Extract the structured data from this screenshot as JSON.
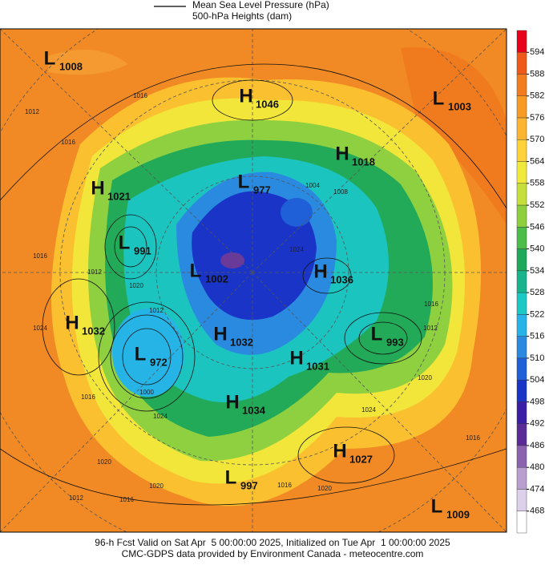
{
  "header": {
    "legend": [
      "Mean Sea Level Pressure (hPa)",
      "500-hPa Heights (dam)"
    ]
  },
  "centers": [
    {
      "type": "L",
      "value": 1008
    },
    {
      "type": "H",
      "value": 1046
    },
    {
      "type": "L",
      "value": 1003
    },
    {
      "type": "H",
      "value": 1018
    },
    {
      "type": "H",
      "value": 1021
    },
    {
      "type": "L",
      "value": 977
    },
    {
      "type": "L",
      "value": 991
    },
    {
      "type": "L",
      "value": 1002
    },
    {
      "type": "H",
      "value": 1036
    },
    {
      "type": "H",
      "value": 1032
    },
    {
      "type": "L",
      "value": 972
    },
    {
      "type": "H",
      "value": 1032
    },
    {
      "type": "L",
      "value": 993
    },
    {
      "type": "H",
      "value": 1031
    },
    {
      "type": "H",
      "value": 1034
    },
    {
      "type": "H",
      "value": 1027
    },
    {
      "type": "L",
      "value": 997
    },
    {
      "type": "L",
      "value": 1009
    }
  ],
  "isobar_labels": [
    1012,
    1016,
    1016,
    1012,
    1016,
    1024,
    1020,
    1012,
    1000,
    1024,
    1016,
    1020,
    1020,
    1012,
    1016,
    1016,
    1020,
    1024,
    1020,
    1016,
    1016,
    1012,
    1004,
    1008,
    1024
  ],
  "colorbar": {
    "ticks": [
      594,
      588,
      582,
      576,
      570,
      564,
      558,
      552,
      546,
      540,
      534,
      528,
      522,
      516,
      510,
      504,
      498,
      492,
      486,
      480,
      474,
      468
    ],
    "colors": [
      "#e8001c",
      "#ef5a1a",
      "#f37d1e",
      "#f79a26",
      "#fbb532",
      "#fed23a",
      "#f2ea3a",
      "#c6df3a",
      "#8ecf3e",
      "#4cbd48",
      "#1fa85a",
      "#17b48e",
      "#1cc9c4",
      "#25b3e8",
      "#2a8ae0",
      "#1f5fd8",
      "#1a34c8",
      "#3a1fa6",
      "#5a2a96",
      "#8a62ae",
      "#b89fd0",
      "#dcd0ea",
      "#ffffff"
    ]
  },
  "footer": [
    "96-h Fcst Valid on Sat Apr  5 00:00:00 2025, Initialized on Tue Apr  1 00:00:00 2025",
    "CMC-GDPS data provided by Environment Canada - meteocentre.com"
  ]
}
